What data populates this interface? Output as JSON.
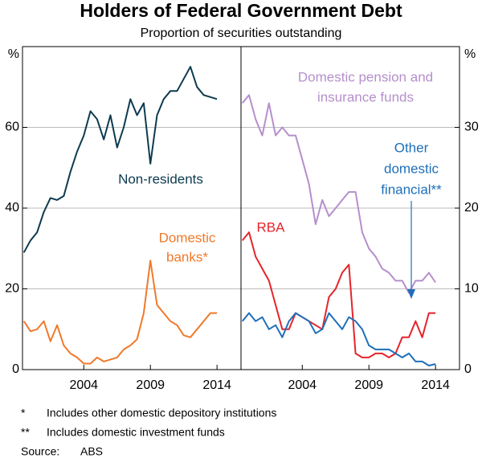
{
  "title": "Holders of Federal Government Debt",
  "subtitle": "Proportion of securities outstanding",
  "chart_data": [
    {
      "type": "line",
      "axis_side": "left",
      "y_unit": "%",
      "grid": true,
      "x": [
        1999.5,
        2000,
        2000.5,
        2001,
        2001.5,
        2002,
        2002.5,
        2003,
        2003.5,
        2004,
        2004.5,
        2005,
        2005.5,
        2006,
        2006.5,
        2007,
        2007.5,
        2008,
        2008.5,
        2009,
        2009.5,
        2010,
        2010.5,
        2011,
        2011.5,
        2012,
        2012.5,
        2013,
        2013.5,
        2014
      ],
      "xlim": [
        1999.4,
        2015.8
      ],
      "xticks": [
        2004,
        2009,
        2014
      ],
      "ylim": [
        0,
        80
      ],
      "yticks": [
        0,
        20,
        40,
        60
      ],
      "series": [
        {
          "name": [
            "Non-residents"
          ],
          "color": "#0d3b4f",
          "values": [
            29,
            32,
            34,
            39,
            42.5,
            42,
            43,
            49,
            54,
            58,
            64,
            62,
            57,
            63,
            55,
            60,
            67,
            63,
            66,
            51,
            63,
            67,
            69,
            69,
            72,
            75,
            70,
            68,
            67.5,
            67
          ]
        },
        {
          "name": [
            "Domestic",
            "banks*"
          ],
          "color": "#f0792a",
          "values": [
            12,
            9.5,
            10,
            12,
            7,
            11,
            6,
            4,
            3,
            1.5,
            1.5,
            3,
            2,
            2.5,
            3,
            5,
            6,
            7.5,
            14,
            27,
            16,
            14,
            12,
            11,
            8.5,
            8,
            10,
            12,
            14,
            14
          ]
        }
      ]
    },
    {
      "type": "line",
      "axis_side": "right",
      "y_unit": "%",
      "grid": true,
      "x": [
        1999.5,
        2000,
        2000.5,
        2001,
        2001.5,
        2002,
        2002.5,
        2003,
        2003.5,
        2004,
        2004.5,
        2005,
        2005.5,
        2006,
        2006.5,
        2007,
        2007.5,
        2008,
        2008.5,
        2009,
        2009.5,
        2010,
        2010.5,
        2011,
        2011.5,
        2012,
        2012.5,
        2013,
        2013.5,
        2014
      ],
      "xlim": [
        1999.4,
        2015.8
      ],
      "xticks": [
        2004,
        2009,
        2014
      ],
      "ylim": [
        0,
        40
      ],
      "yticks": [
        0,
        10,
        20,
        30
      ],
      "series": [
        {
          "name": [
            "Domestic pension and",
            "insurance funds"
          ],
          "color": "#b58fcc",
          "values": [
            33,
            34,
            31,
            29,
            33,
            29,
            30,
            29,
            29,
            26,
            23,
            18,
            21,
            19,
            20,
            21,
            22,
            22,
            17,
            15,
            14,
            12.5,
            12,
            11,
            11,
            9.5,
            11,
            11,
            12,
            10.8
          ]
        },
        {
          "name": [
            "RBA"
          ],
          "color": "#e5242b",
          "values": [
            16,
            17,
            14,
            12.5,
            11,
            8,
            5,
            5,
            7,
            6.5,
            6,
            5.5,
            5,
            9,
            10,
            12,
            13,
            2,
            1.5,
            1.5,
            2,
            2,
            1.5,
            2,
            4,
            4,
            6,
            4,
            7,
            7
          ]
        },
        {
          "name": [
            "Other",
            "domestic",
            "financial**"
          ],
          "color": "#1d6fba",
          "values": [
            6,
            7,
            6,
            6.5,
            5,
            5.5,
            4,
            6,
            7,
            6.5,
            6,
            4.5,
            5,
            7,
            6,
            5,
            6.5,
            6,
            5,
            3,
            2.5,
            2.5,
            2.5,
            2,
            1.5,
            2,
            1,
            1,
            0.5,
            0.7
          ]
        }
      ]
    }
  ],
  "notes": [
    {
      "mark": "*",
      "text": "Includes other domestic depository institutions"
    },
    {
      "mark": "**",
      "text": "Includes domestic investment funds"
    }
  ],
  "source": {
    "label": "Source:",
    "text": "ABS"
  }
}
